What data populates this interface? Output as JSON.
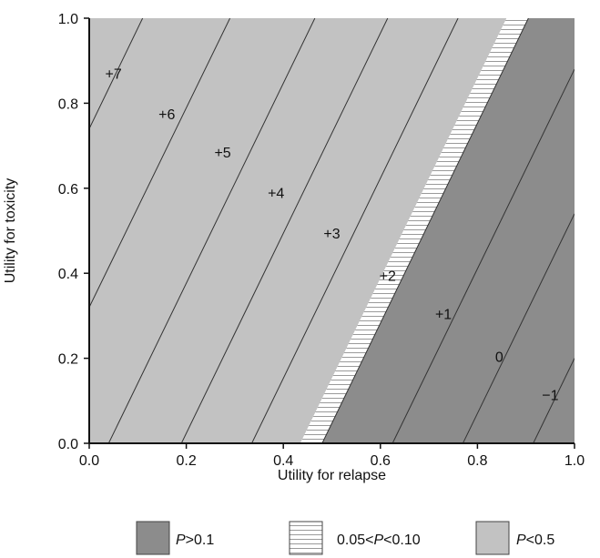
{
  "chart_data": {
    "type": "contour",
    "xlabel": "Utility for relapse",
    "ylabel": "Utility for toxicity",
    "xlim": [
      0.0,
      1.0
    ],
    "ylim": [
      0.0,
      1.0
    ],
    "xticks": [
      {
        "value": 0.0,
        "label": "0.0"
      },
      {
        "value": 0.2,
        "label": "0.2"
      },
      {
        "value": 0.4,
        "label": "0.4"
      },
      {
        "value": 0.6,
        "label": "0.6"
      },
      {
        "value": 0.8,
        "label": "0.8"
      },
      {
        "value": 1.0,
        "label": "1.0"
      }
    ],
    "yticks": [
      {
        "value": 0.0,
        "label": "0.0"
      },
      {
        "value": 0.2,
        "label": "0.2"
      },
      {
        "value": 0.4,
        "label": "0.4"
      },
      {
        "value": 0.6,
        "label": "0.6"
      },
      {
        "value": 0.8,
        "label": "0.8"
      },
      {
        "value": 1.0,
        "label": "1.0"
      }
    ],
    "regions": [
      {
        "name": "P<0.5",
        "color": "#c2c2c2",
        "polygon": [
          [
            0.0,
            0.0
          ],
          [
            0.435,
            0.0
          ],
          [
            0.86,
            1.0
          ],
          [
            0.0,
            1.0
          ]
        ]
      },
      {
        "name": "0.05<P<0.10",
        "color": "#ffffff",
        "pattern": "horizontal-stripes",
        "polygon": [
          [
            0.435,
            0.0
          ],
          [
            0.48,
            0.0
          ],
          [
            0.905,
            1.0
          ],
          [
            0.86,
            1.0
          ]
        ]
      },
      {
        "name": "P>0.1",
        "color": "#8c8c8c",
        "polygon": [
          [
            0.48,
            0.0
          ],
          [
            1.0,
            0.0
          ],
          [
            1.0,
            1.0
          ],
          [
            0.905,
            1.0
          ]
        ]
      }
    ],
    "contours": [
      {
        "label": "+7",
        "points": [
          [
            0.0,
            0.74
          ],
          [
            0.11,
            1.0
          ]
        ],
        "label_at": [
          0.05,
          0.87
        ]
      },
      {
        "label": "+6",
        "points": [
          [
            0.0,
            0.32
          ],
          [
            0.29,
            1.0
          ]
        ],
        "label_at": [
          0.16,
          0.775
        ]
      },
      {
        "label": "+5",
        "points": [
          [
            0.04,
            0.0
          ],
          [
            0.465,
            1.0
          ]
        ],
        "label_at": [
          0.275,
          0.685
        ]
      },
      {
        "label": "+4",
        "points": [
          [
            0.19,
            0.0
          ],
          [
            0.615,
            1.0
          ]
        ],
        "label_at": [
          0.385,
          0.59
        ]
      },
      {
        "label": "+3",
        "points": [
          [
            0.335,
            0.0
          ],
          [
            0.76,
            1.0
          ]
        ],
        "label_at": [
          0.5,
          0.495
        ]
      },
      {
        "label": "+2",
        "points": [
          [
            0.48,
            0.0
          ],
          [
            0.905,
            1.0
          ]
        ],
        "label_at": [
          0.615,
          0.395
        ]
      },
      {
        "label": "+1",
        "points": [
          [
            0.625,
            0.0
          ],
          [
            1.0,
            0.88
          ]
        ],
        "label_at": [
          0.73,
          0.305
        ]
      },
      {
        "label": "0",
        "points": [
          [
            0.77,
            0.0
          ],
          [
            1.0,
            0.54
          ]
        ],
        "label_at": [
          0.845,
          0.205
        ]
      },
      {
        "label": "−1",
        "points": [
          [
            0.915,
            0.0
          ],
          [
            1.0,
            0.2
          ]
        ],
        "label_at": [
          0.95,
          0.115
        ]
      }
    ],
    "legend": {
      "placement": "bottom",
      "items": [
        {
          "name_prefix": "P",
          "name_suffix": ">0.1",
          "color": "#8c8c8c",
          "pattern": "solid"
        },
        {
          "name_prefix": "0.05<",
          "name_italic": "P",
          "name_suffix": "<0.10",
          "color": "#ffffff",
          "pattern": "horizontal-stripes"
        },
        {
          "name_prefix": "P",
          "name_suffix": "<0.5",
          "color": "#c2c2c2",
          "pattern": "solid"
        }
      ]
    },
    "grid": false
  }
}
